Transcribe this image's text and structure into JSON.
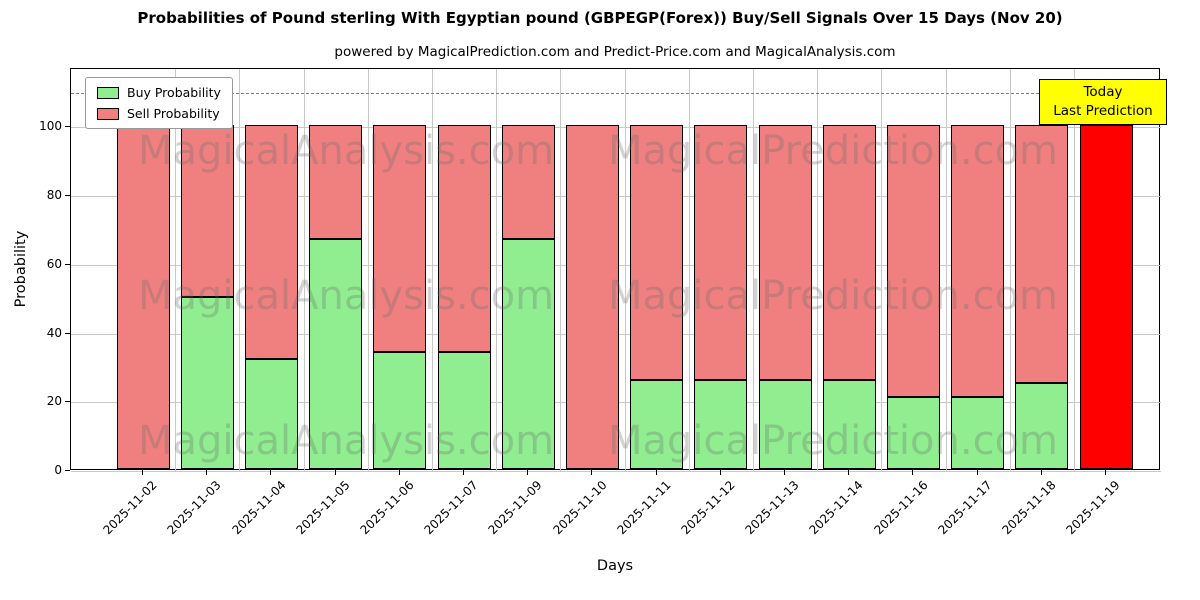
{
  "chart": {
    "title": "Probabilities of Pound sterling With Egyptian pound (GBPEGP(Forex)) Buy/Sell Signals Over 15 Days (Nov 20)",
    "subtitle": "powered by MagicalPrediction.com and Predict-Price.com and MagicalAnalysis.com",
    "ylabel": "Probability",
    "xlabel": "Days",
    "today_box": {
      "line1": "Today",
      "line2": "Last Prediction"
    },
    "watermarks": [
      "MagicalAnalysis.com",
      "MagicalPrediction.com"
    ]
  },
  "colors": {
    "buy_green": "#90EE90",
    "sell_red": "#F08080",
    "last_prediction_red": "#FF0000",
    "annotation_yellow": "#FFFF00",
    "grid_gray": "#c8c8c8"
  },
  "chart_data": {
    "type": "bar",
    "stacked": true,
    "title": "Probabilities of Pound sterling With Egyptian pound (GBPEGP(Forex)) Buy/Sell Signals Over 15 Days (Nov 20)",
    "xlabel": "Days",
    "ylabel": "Probability",
    "categories": [
      "2025-11-02",
      "2025-11-03",
      "2025-11-04",
      "2025-11-05",
      "2025-11-06",
      "2025-11-07",
      "2025-11-09",
      "2025-11-10",
      "2025-11-11",
      "2025-11-12",
      "2025-11-13",
      "2025-11-14",
      "2025-11-16",
      "2025-11-17",
      "2025-11-18",
      "2025-11-19"
    ],
    "series": [
      {
        "name": "Buy Probability",
        "color": "#90EE90",
        "values": [
          0,
          50,
          32,
          67,
          34,
          34,
          67,
          0,
          26,
          26,
          26,
          26,
          21,
          21,
          25,
          0
        ]
      },
      {
        "name": "Sell Probability",
        "color": "#F08080",
        "values": [
          100,
          50,
          68,
          33,
          66,
          66,
          33,
          100,
          74,
          74,
          74,
          74,
          79,
          79,
          75,
          0
        ]
      }
    ],
    "last_bar": {
      "index": 15,
      "value": 100,
      "color": "#FF0000",
      "meaning": "Today / Last Prediction"
    },
    "ylim": [
      0,
      117
    ],
    "yticks": [
      0,
      20,
      40,
      60,
      80,
      100
    ],
    "dashed_line_y": 110,
    "grid": true,
    "legend_position": "upper left"
  }
}
